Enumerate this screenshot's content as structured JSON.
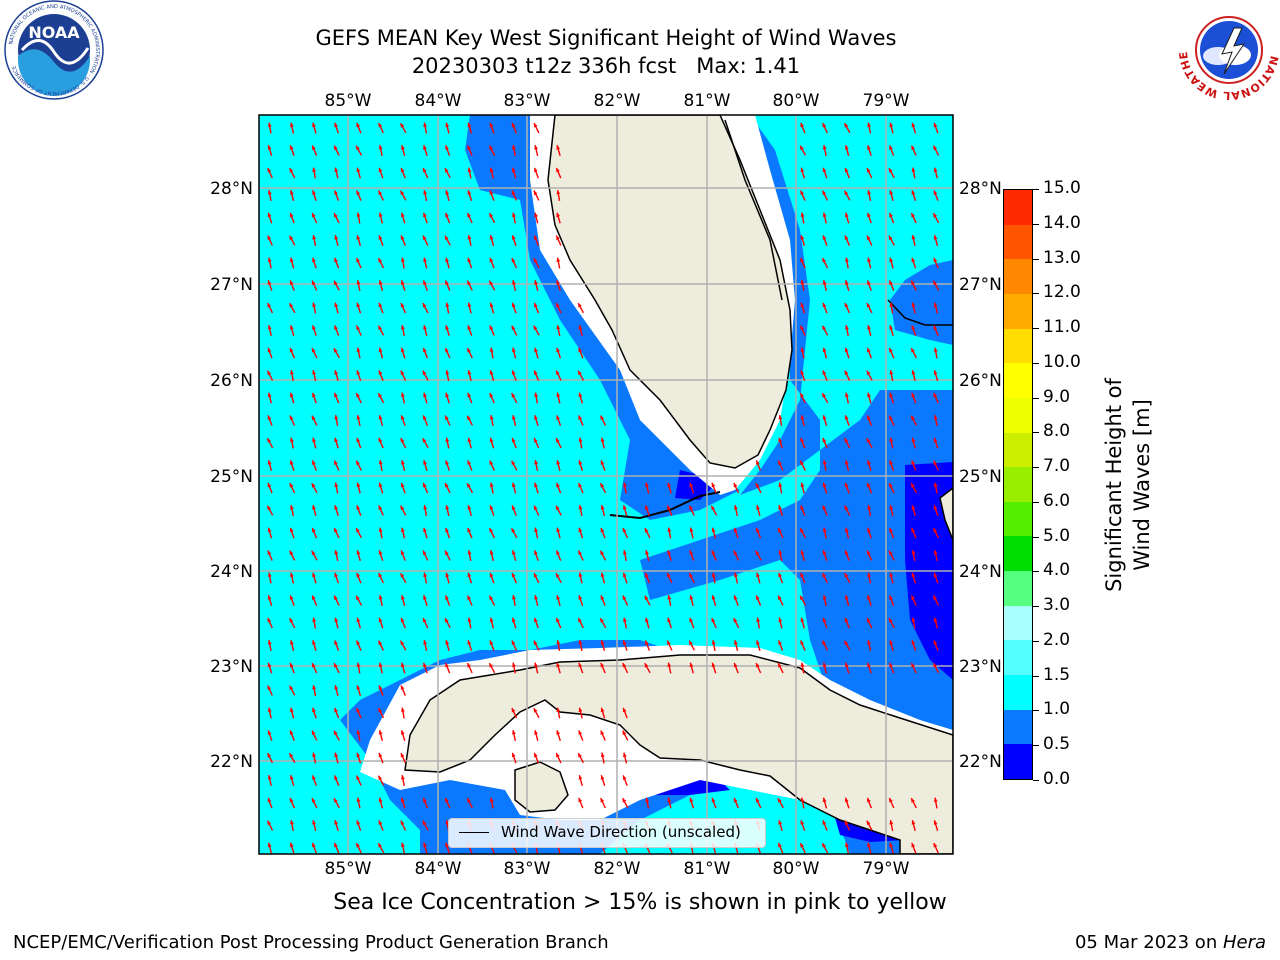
{
  "header": {
    "title_line1": "GEFS MEAN Key West Significant Height of Wind Waves",
    "title_line2": "20230303 t12z 336h fcst   Max: 1.41"
  },
  "logos": {
    "left": {
      "text": "NOAA",
      "ring_text": "NATIONAL OCEANIC AND ATMOSPHERIC ADMINISTRATION · U.S. DEPARTMENT OF COMMERCE"
    },
    "right": {
      "ring_text": "NATIONAL WEATHER SERVICE"
    }
  },
  "map": {
    "lon_labels": [
      "85°W",
      "84°W",
      "83°W",
      "82°W",
      "81°W",
      "80°W",
      "79°W"
    ],
    "lat_labels": [
      "28°N",
      "27°N",
      "26°N",
      "25°N",
      "24°N",
      "23°N",
      "22°N"
    ],
    "legend_label": "Wind Wave Direction (unscaled)",
    "colors": {
      "land": "#eeecdc",
      "sea_0_0_5": "#0000ff",
      "sea_0_5_1_0": "#0a78ff",
      "sea_1_0_1_5": "#00ffff",
      "arrow": "#ff0000",
      "grid": "#b0b0b0"
    }
  },
  "colorbar": {
    "label": "Significant Height of Wind Waves [m]",
    "ticks": [
      "0.0",
      "0.5",
      "1.0",
      "1.5",
      "2.0",
      "3.0",
      "4.0",
      "5.0",
      "6.0",
      "7.0",
      "8.0",
      "9.0",
      "10.0",
      "11.0",
      "12.0",
      "13.0",
      "14.0",
      "15.0"
    ],
    "colors": [
      "#0000ff",
      "#0a78ff",
      "#00ffff",
      "#55ffff",
      "#aaffff",
      "#55ff7f",
      "#00dd00",
      "#55ee00",
      "#99ee00",
      "#ccee00",
      "#eeff00",
      "#ffff00",
      "#ffdd00",
      "#ffaa00",
      "#ff8800",
      "#ff5500",
      "#ff2a00",
      "#ff0000"
    ]
  },
  "note": "Sea Ice Concentration > 15% is shown in pink to yellow",
  "footer": {
    "left": "NCEP/EMC/Verification Post Processing Product Generation Branch",
    "date": "05 Mar 2023 on ",
    "host": "Hera"
  }
}
